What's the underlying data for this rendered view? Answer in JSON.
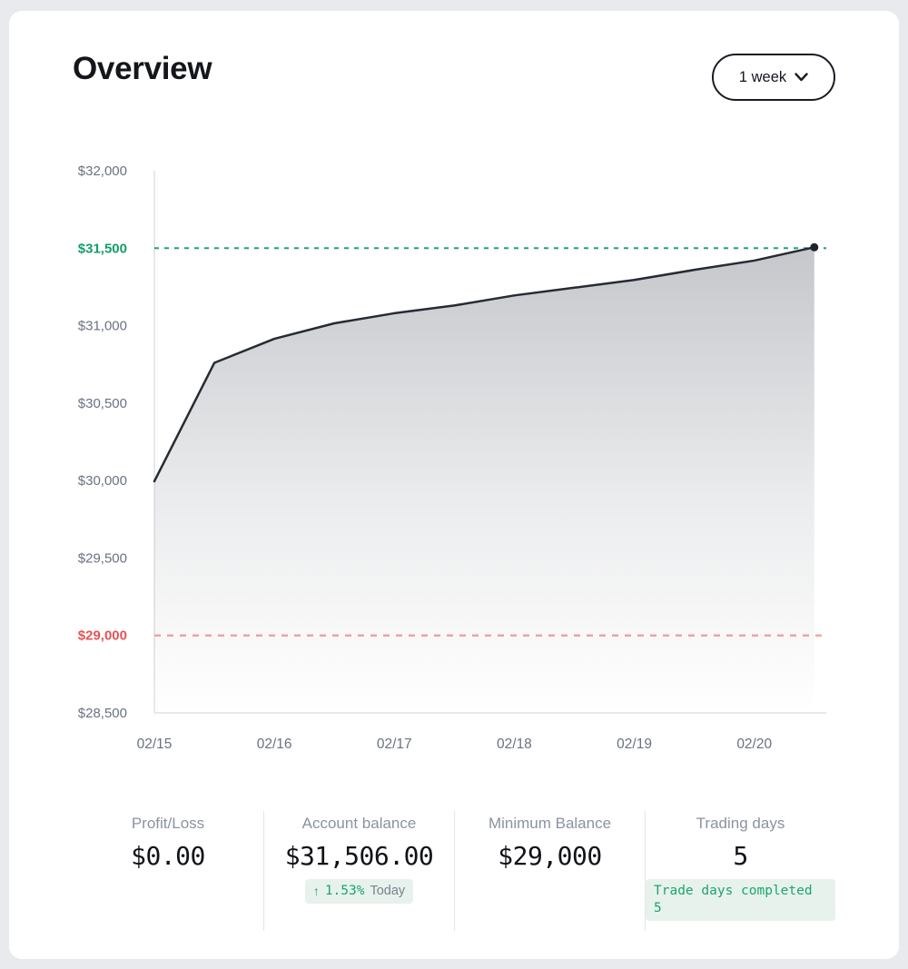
{
  "page": {
    "background_color": "#e8eaed",
    "card_background_color": "#ffffff"
  },
  "header": {
    "title": "Overview",
    "range_selector": {
      "label": "1 week",
      "icon": "chevron-down-icon"
    }
  },
  "chart_data": {
    "type": "area",
    "title": "",
    "xlabel": "",
    "ylabel": "",
    "x": [
      0,
      0.5,
      1,
      1.5,
      2,
      2.5,
      3,
      3.5,
      4,
      4.5,
      5,
      5.5
    ],
    "series": [
      {
        "name": "Account balance",
        "values": [
          29995,
          30760,
          30915,
          31015,
          31080,
          31130,
          31195,
          31245,
          31295,
          31360,
          31420,
          31506
        ]
      }
    ],
    "xtick_labels": [
      "02/15",
      "02/16",
      "02/17",
      "02/18",
      "02/19",
      "02/20"
    ],
    "xtick_positions": [
      0,
      1,
      2,
      3,
      4,
      5
    ],
    "ytick_labels": [
      "$32,000",
      "$31,500",
      "$31,000",
      "$30,500",
      "$30,000",
      "$29,500",
      "$29,000",
      "$28,500"
    ],
    "ytick_values": [
      32000,
      31500,
      31000,
      30500,
      30000,
      29500,
      29000,
      28500
    ],
    "ylim": [
      28500,
      32000
    ],
    "xlim": [
      0,
      5.6
    ],
    "grid": false,
    "legend": false,
    "line_color": "#262b33",
    "area_color": "#3c4452",
    "axis_color": "#e6e8ec",
    "tick_color": "#6a7183",
    "end_dot": true,
    "end_dot_color": "#20242b",
    "reference_lines": [
      {
        "role": "profit-target",
        "value": 31500,
        "label": "$31,500",
        "label_color": "#149e68",
        "color": "#1fa478",
        "width": 2,
        "dash": "5 6"
      },
      {
        "role": "minimum-balance",
        "value": 29000,
        "label": "$29,000",
        "label_color": "#e25555",
        "color": "#f2a8a8",
        "width": 2.5,
        "dash": "7 7"
      }
    ]
  },
  "stats": [
    {
      "label": "Profit/Loss",
      "value": "$0.00"
    },
    {
      "label": "Account balance",
      "value": "$31,506.00",
      "badge": {
        "arrow": "↑",
        "percent": "1.53%",
        "suffix": "Today"
      }
    },
    {
      "label": "Minimum Balance",
      "value": "$29,000"
    },
    {
      "label": "Trading days",
      "value": "5",
      "badge": {
        "text": "Trade days completed 5"
      }
    }
  ],
  "colors": {
    "accent_green": "#1da46f",
    "badge_background": "#e7f2ec",
    "danger_red": "#e25555",
    "stat_label_gray": "#8b92a2"
  }
}
